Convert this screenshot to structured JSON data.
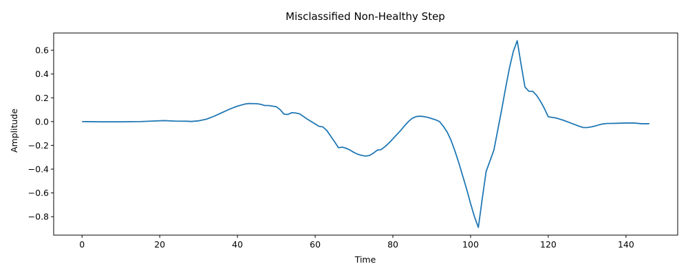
{
  "chart_data": {
    "type": "line",
    "title": "Misclassified Non-Healthy Step",
    "xlabel": "Time",
    "ylabel": "Amplitude",
    "xlim": [
      -7.3,
      153.3
    ],
    "ylim": [
      -0.955,
      0.745
    ],
    "xticks": [
      0,
      20,
      40,
      60,
      80,
      100,
      120,
      140
    ],
    "yticks": [
      -0.8,
      -0.6,
      -0.4,
      -0.2,
      0.0,
      0.2,
      0.4,
      0.6
    ],
    "ytick_labels": [
      "−0.8",
      "−0.6",
      "−0.4",
      "−0.2",
      "0.0",
      "0.2",
      "0.4",
      "0.6"
    ],
    "grid": false,
    "series": [
      {
        "color": "#1f77b4",
        "x": [
          0,
          5,
          10,
          15,
          18,
          21,
          24,
          27,
          28,
          30,
          32,
          34,
          36,
          37,
          38,
          40,
          42,
          43,
          45,
          46,
          47,
          48,
          50,
          51,
          52,
          53,
          54,
          55,
          56,
          58,
          60,
          61,
          62,
          63,
          65,
          66,
          67,
          68,
          69,
          70,
          71,
          72,
          73,
          74,
          75,
          76,
          77,
          78,
          79,
          80,
          81,
          82,
          83,
          84,
          85,
          86,
          87,
          88,
          89,
          90,
          91,
          92,
          93,
          94,
          95,
          96,
          97,
          98,
          99,
          100,
          101,
          102,
          103,
          104,
          105,
          106,
          107,
          108,
          109,
          110,
          111,
          112,
          113,
          114,
          115,
          116,
          117,
          118,
          119,
          120,
          121,
          122,
          124,
          126,
          128,
          129,
          130,
          131,
          132,
          133,
          134,
          135,
          137,
          140,
          142,
          144,
          146
        ],
        "y": [
          0.0,
          -0.002,
          -0.002,
          0.0,
          0.004,
          0.008,
          0.004,
          0.003,
          0.001,
          0.006,
          0.02,
          0.045,
          0.075,
          0.09,
          0.105,
          0.13,
          0.148,
          0.152,
          0.15,
          0.145,
          0.135,
          0.135,
          0.125,
          0.1,
          0.062,
          0.06,
          0.075,
          0.072,
          0.065,
          0.02,
          -0.02,
          -0.04,
          -0.045,
          -0.075,
          -0.17,
          -0.22,
          -0.215,
          -0.225,
          -0.24,
          -0.26,
          -0.275,
          -0.285,
          -0.29,
          -0.285,
          -0.265,
          -0.24,
          -0.235,
          -0.21,
          -0.18,
          -0.145,
          -0.11,
          -0.075,
          -0.035,
          0.0,
          0.028,
          0.042,
          0.045,
          0.042,
          0.035,
          0.025,
          0.015,
          0.0,
          -0.04,
          -0.09,
          -0.16,
          -0.25,
          -0.35,
          -0.46,
          -0.57,
          -0.69,
          -0.8,
          -0.89,
          -0.65,
          -0.42,
          -0.33,
          -0.24,
          -0.07,
          0.1,
          0.28,
          0.45,
          0.59,
          0.68,
          0.48,
          0.29,
          0.255,
          0.255,
          0.22,
          0.17,
          0.11,
          0.04,
          0.035,
          0.03,
          0.01,
          -0.015,
          -0.04,
          -0.05,
          -0.05,
          -0.045,
          -0.038,
          -0.028,
          -0.02,
          -0.016,
          -0.015,
          -0.012,
          -0.012,
          -0.018,
          -0.018
        ]
      }
    ]
  }
}
